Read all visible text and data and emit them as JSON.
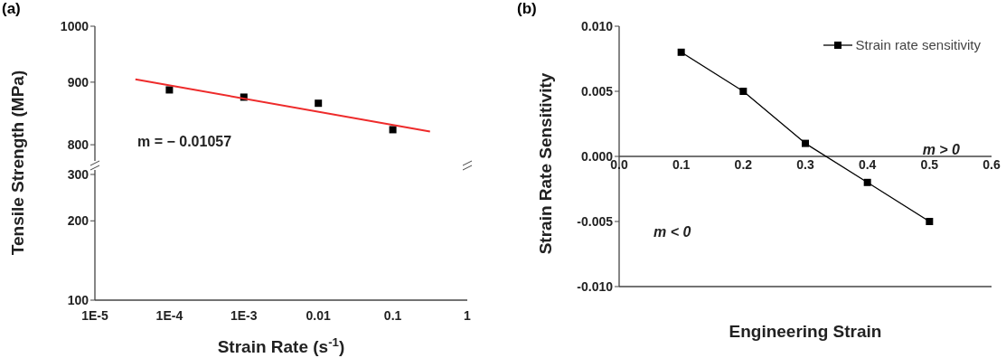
{
  "chart_data": [
    {
      "type": "scatter",
      "title": "(a)",
      "ylabel": "Tensile Strength (MPa)",
      "x": [
        0.0001,
        0.001,
        0.01,
        0.1
      ],
      "xlim": [
        1e-05,
        1
      ],
      "ylim": [
        776,
        1000
      ],
      "yticks": [
        800,
        900,
        1000
      ],
      "log": "xy",
      "tick_labels": "y",
      "marker": "square",
      "series": [
        {
          "color": "#000000",
          "values": [
            887,
            875,
            865,
            823
          ]
        },
        {
          "type": "line",
          "marker": "none",
          "color": "#ee2b2b",
          "x": [
            3.5e-05,
            0.316
          ],
          "values": [
            905,
            820
          ]
        }
      ],
      "annotations": [
        "m = − 0.01057"
      ]
    },
    {
      "type": "scatter",
      "xlabel": "Strain Rate (s$^{-1}$)",
      "xlim": [
        1e-05,
        1
      ],
      "xticks": [
        {
          "value": 1e-05,
          "label": "1E-5"
        },
        {
          "value": 0.0001,
          "label": "1E-4"
        },
        {
          "value": 0.001,
          "label": "1E-3"
        },
        0.01,
        0.1,
        1
      ],
      "ylim": [
        100,
        312
      ],
      "yticks": [
        100,
        200,
        300
      ],
      "log": "xy"
    },
    {
      "type": "line",
      "title": "(b)",
      "xlabel": "Engineering Strain",
      "ylabel": "Strain Rate Sensitivity",
      "x": [
        0.1,
        0.2,
        0.3,
        0.4,
        0.5
      ],
      "xlim": [
        0,
        0.6
      ],
      "xticks": [
        {
          "value": 0,
          "label": "0.0"
        },
        0.1,
        0.2,
        0.3,
        0.4,
        0.5,
        0.6
      ],
      "ylim": [
        -0.01,
        0.01
      ],
      "yticks": [
        {
          "value": -0.01,
          "label": "-0.010"
        },
        {
          "value": -0.005,
          "label": "-0.005"
        },
        {
          "value": 0,
          "label": "0.000"
        },
        {
          "value": 0.005,
          "label": "0.005"
        },
        {
          "value": 0.01,
          "label": "0.010"
        }
      ],
      "marker": "square",
      "legend": "top right",
      "series": [
        {
          "name": "Strain rate sensitivity",
          "color": "#000000",
          "values": [
            0.008,
            0.005,
            0.001,
            -0.002,
            -0.005
          ]
        }
      ],
      "annotations": [
        "m > 0",
        "m < 0"
      ]
    }
  ]
}
